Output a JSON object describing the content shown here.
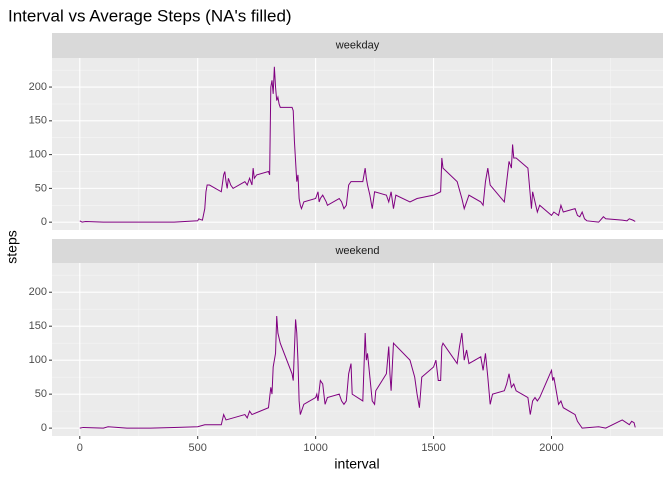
{
  "title": "Interval vs Average Steps (NA's filled)",
  "x_label": "interval",
  "y_label": "steps",
  "chart_data": [
    {
      "type": "line",
      "title": "weekday",
      "x": [
        0,
        10,
        25,
        100,
        200,
        300,
        400,
        500,
        505,
        510,
        520,
        530,
        535,
        540,
        550,
        600,
        610,
        615,
        620,
        625,
        630,
        640,
        650,
        700,
        710,
        720,
        730,
        735,
        740,
        750,
        800,
        805,
        810,
        815,
        820,
        825,
        830,
        835,
        840,
        845,
        850,
        900,
        905,
        910,
        915,
        920,
        925,
        930,
        935,
        940,
        950,
        1000,
        1005,
        1010,
        1015,
        1020,
        1030,
        1045,
        1050,
        1100,
        1110,
        1120,
        1130,
        1140,
        1150,
        1200,
        1210,
        1215,
        1220,
        1230,
        1240,
        1250,
        1300,
        1310,
        1320,
        1330,
        1340,
        1400,
        1430,
        1500,
        1530,
        1535,
        1540,
        1600,
        1620,
        1630,
        1640,
        1650,
        1700,
        1710,
        1720,
        1730,
        1740,
        1800,
        1810,
        1820,
        1830,
        1835,
        1840,
        1850,
        1900,
        1910,
        1915,
        1920,
        1930,
        1940,
        1950,
        2000,
        2010,
        2030,
        2040,
        2050,
        2100,
        2110,
        2120,
        2130,
        2140,
        2150,
        2200,
        2220,
        2230,
        2300,
        2320,
        2330,
        2345,
        2355
      ],
      "series": [
        {
          "name": "steps",
          "color": "#800080",
          "values": [
            2,
            0,
            1,
            0,
            0,
            0,
            0,
            2,
            5,
            4,
            3,
            20,
            45,
            55,
            55,
            45,
            70,
            75,
            60,
            50,
            65,
            55,
            50,
            60,
            55,
            65,
            55,
            80,
            65,
            70,
            75,
            70,
            200,
            210,
            190,
            230,
            200,
            180,
            185,
            175,
            170,
            170,
            165,
            120,
            90,
            60,
            70,
            35,
            25,
            20,
            30,
            35,
            40,
            45,
            30,
            35,
            40,
            30,
            25,
            35,
            30,
            20,
            25,
            55,
            60,
            60,
            80,
            65,
            55,
            40,
            20,
            45,
            40,
            30,
            45,
            20,
            40,
            30,
            35,
            40,
            45,
            95,
            80,
            60,
            35,
            20,
            30,
            40,
            30,
            25,
            60,
            80,
            55,
            30,
            60,
            90,
            80,
            115,
            95,
            95,
            80,
            40,
            20,
            45,
            30,
            15,
            25,
            10,
            15,
            10,
            25,
            15,
            20,
            10,
            8,
            15,
            5,
            2,
            0,
            8,
            5,
            3,
            2,
            5,
            3,
            1
          ]
        }
      ],
      "xlim": [
        -117.75,
        2472.75
      ],
      "ylim": [
        -11.6,
        243
      ],
      "xticks": [
        0,
        500,
        1000,
        1500,
        2000
      ],
      "yticks": [
        0,
        50,
        100,
        150,
        200
      ],
      "x_minor_grid": [
        250,
        750,
        1250,
        1750,
        2250
      ],
      "y_minor_grid": [
        25,
        75,
        125,
        175,
        225
      ]
    },
    {
      "type": "line",
      "title": "weekend",
      "x": [
        0,
        15,
        100,
        120,
        200,
        300,
        400,
        500,
        530,
        600,
        610,
        620,
        650,
        700,
        710,
        720,
        730,
        800,
        810,
        815,
        820,
        830,
        835,
        840,
        850,
        900,
        905,
        915,
        920,
        925,
        930,
        935,
        940,
        950,
        1000,
        1005,
        1010,
        1020,
        1030,
        1040,
        1050,
        1100,
        1110,
        1120,
        1130,
        1140,
        1150,
        1155,
        1200,
        1210,
        1215,
        1220,
        1230,
        1240,
        1250,
        1255,
        1300,
        1310,
        1315,
        1320,
        1330,
        1400,
        1420,
        1430,
        1440,
        1450,
        1500,
        1510,
        1520,
        1530,
        1535,
        1540,
        1600,
        1610,
        1620,
        1630,
        1640,
        1650,
        1700,
        1710,
        1720,
        1730,
        1740,
        1750,
        1800,
        1810,
        1820,
        1830,
        1840,
        1850,
        1900,
        1910,
        1920,
        1930,
        1940,
        1950,
        2000,
        2005,
        2010,
        2020,
        2030,
        2040,
        2050,
        2100,
        2110,
        2130,
        2200,
        2230,
        2300,
        2330,
        2340,
        2350,
        2355
      ],
      "series": [
        {
          "name": "steps",
          "color": "#800080",
          "values": [
            0,
            1,
            0,
            2,
            0,
            0,
            1,
            2,
            5,
            5,
            20,
            12,
            15,
            20,
            15,
            25,
            20,
            30,
            60,
            50,
            90,
            110,
            165,
            140,
            125,
            80,
            70,
            160,
            140,
            100,
            40,
            20,
            25,
            35,
            45,
            50,
            40,
            70,
            65,
            35,
            45,
            50,
            40,
            35,
            40,
            80,
            95,
            50,
            40,
            140,
            100,
            110,
            75,
            40,
            35,
            55,
            80,
            120,
            80,
            55,
            125,
            100,
            75,
            50,
            30,
            75,
            90,
            100,
            70,
            70,
            120,
            125,
            95,
            120,
            140,
            100,
            115,
            95,
            105,
            85,
            110,
            75,
            35,
            50,
            55,
            65,
            80,
            60,
            65,
            55,
            45,
            20,
            40,
            45,
            40,
            45,
            85,
            70,
            75,
            55,
            35,
            40,
            30,
            20,
            10,
            0,
            2,
            0,
            12,
            5,
            10,
            8,
            1
          ]
        }
      ],
      "xlim": [
        -117.75,
        2472.75
      ],
      "ylim": [
        -11.6,
        243
      ],
      "xticks": [
        0,
        500,
        1000,
        1500,
        2000
      ],
      "yticks": [
        0,
        50,
        100,
        150,
        200
      ],
      "x_minor_grid": [
        250,
        750,
        1250,
        1750,
        2250
      ],
      "y_minor_grid": [
        25,
        75,
        125,
        175,
        225
      ]
    }
  ]
}
